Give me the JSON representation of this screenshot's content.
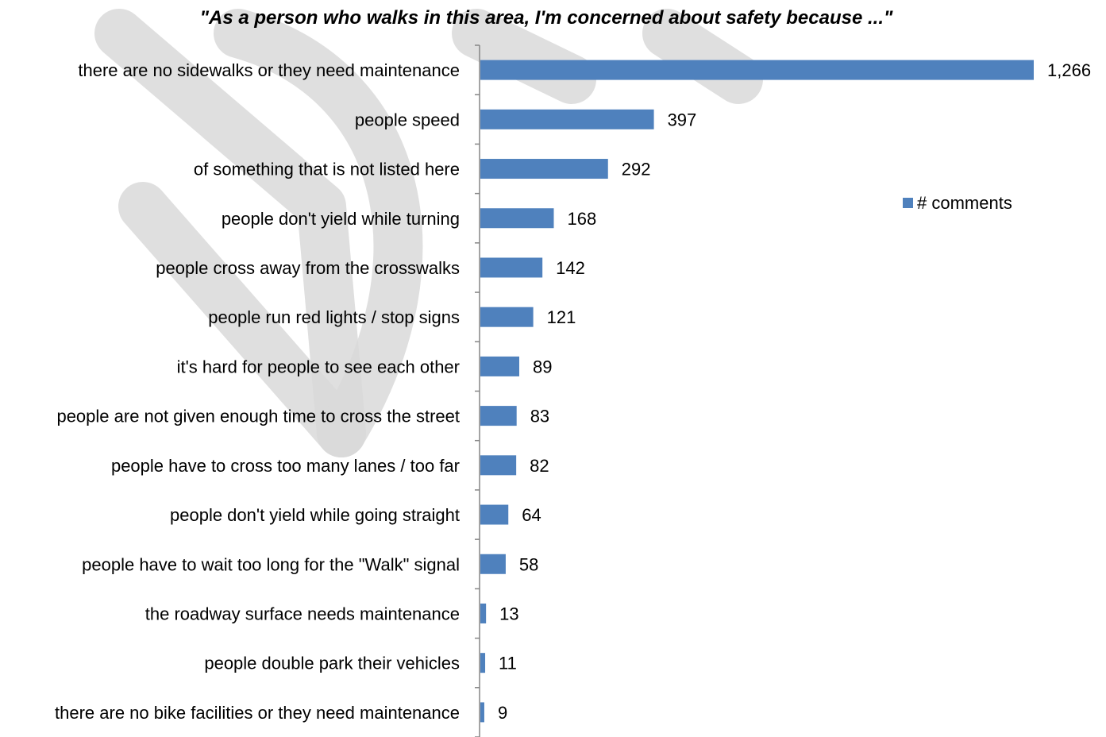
{
  "chart_data": {
    "type": "bar",
    "orientation": "horizontal",
    "title": "\"As a person who walks in this area, I'm concerned about safety because ...\"",
    "categories": [
      "there are no sidewalks or they need maintenance",
      "people speed",
      "of something that is not listed here",
      "people don't yield while turning",
      "people cross away from the crosswalks",
      "people run red lights / stop signs",
      "it's hard for people to see each other",
      "people are not given enough time to cross the street",
      "people have to cross too many lanes / too far",
      "people don't yield while going straight",
      "people have to wait too long for the \"Walk\" signal",
      "the roadway surface needs maintenance",
      "people double park their vehicles",
      "there are no bike facilities or they need maintenance"
    ],
    "series": [
      {
        "name": "# comments",
        "color": "#4f81bd",
        "values": [
          1266,
          397,
          292,
          168,
          142,
          121,
          89,
          83,
          82,
          64,
          58,
          13,
          11,
          9
        ],
        "value_labels": [
          "1,266",
          "397",
          "292",
          "168",
          "142",
          "121",
          "89",
          "83",
          "82",
          "64",
          "58",
          "13",
          "11",
          "9"
        ]
      }
    ],
    "xlim": [
      0,
      1266
    ],
    "grid": false,
    "legend": "right"
  }
}
